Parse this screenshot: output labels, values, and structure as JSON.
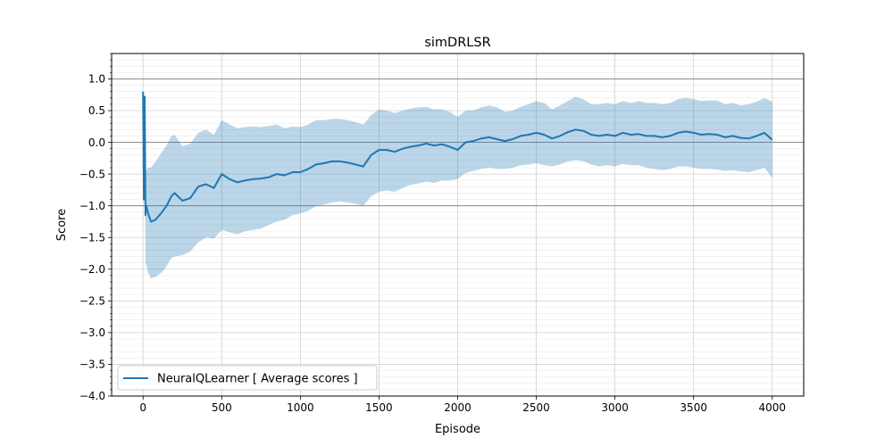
{
  "chart_data": {
    "type": "line",
    "title": "simDRLSR",
    "xlabel": "Episode",
    "ylabel": "Score",
    "xlim": [
      -200,
      4200
    ],
    "ylim": [
      -4.0,
      1.4
    ],
    "xticks": [
      0,
      500,
      1000,
      1500,
      2000,
      2500,
      3000,
      3500,
      4000
    ],
    "yticks": [
      -4.0,
      -3.5,
      -3.0,
      -2.5,
      -2.0,
      -1.5,
      -1.0,
      -0.5,
      0.0,
      0.5,
      1.0
    ],
    "ytick_labels": [
      "−4.0",
      "−3.5",
      "−3.0",
      "−2.5",
      "−2.0",
      "−1.5",
      "−1.0",
      "−0.5",
      "0.0",
      "0.5",
      "1.0"
    ],
    "reference_lines_y": [
      1.0,
      0.0,
      -1.0
    ],
    "grid": true,
    "minor_grid": true,
    "legend": {
      "position": "lower-left",
      "entries": [
        "NeuralQLearner [ Average scores ]"
      ]
    },
    "colors": {
      "line": "#1f77b4",
      "band": "#1f77b4",
      "reference": "#808080"
    },
    "series": [
      {
        "name": "NeuralQLearner [ Average scores ]",
        "x": [
          0,
          5,
          10,
          15,
          20,
          30,
          50,
          80,
          120,
          150,
          180,
          200,
          250,
          300,
          350,
          400,
          450,
          500,
          550,
          600,
          650,
          700,
          750,
          800,
          850,
          900,
          950,
          1000,
          1050,
          1100,
          1150,
          1200,
          1250,
          1300,
          1350,
          1400,
          1450,
          1500,
          1550,
          1600,
          1650,
          1700,
          1750,
          1800,
          1850,
          1900,
          1950,
          2000,
          2050,
          2100,
          2150,
          2200,
          2250,
          2300,
          2350,
          2400,
          2450,
          2500,
          2550,
          2600,
          2650,
          2700,
          2750,
          2800,
          2850,
          2900,
          2950,
          3000,
          3050,
          3100,
          3150,
          3200,
          3250,
          3300,
          3350,
          3400,
          3450,
          3500,
          3550,
          3600,
          3650,
          3700,
          3750,
          3800,
          3850,
          3900,
          3950,
          4000
        ],
        "y": [
          0.8,
          -0.9,
          0.72,
          -1.15,
          -1.0,
          -1.1,
          -1.25,
          -1.22,
          -1.1,
          -1.0,
          -0.85,
          -0.8,
          -0.92,
          -0.88,
          -0.7,
          -0.66,
          -0.72,
          -0.5,
          -0.58,
          -0.63,
          -0.6,
          -0.58,
          -0.57,
          -0.55,
          -0.5,
          -0.52,
          -0.47,
          -0.47,
          -0.42,
          -0.35,
          -0.33,
          -0.3,
          -0.3,
          -0.32,
          -0.35,
          -0.38,
          -0.2,
          -0.12,
          -0.12,
          -0.15,
          -0.1,
          -0.07,
          -0.05,
          -0.02,
          -0.05,
          -0.03,
          -0.07,
          -0.12,
          0.0,
          0.02,
          0.06,
          0.08,
          0.05,
          0.02,
          0.05,
          0.1,
          0.12,
          0.15,
          0.12,
          0.06,
          0.1,
          0.16,
          0.2,
          0.18,
          0.12,
          0.1,
          0.12,
          0.1,
          0.15,
          0.12,
          0.13,
          0.1,
          0.1,
          0.08,
          0.1,
          0.15,
          0.17,
          0.15,
          0.12,
          0.13,
          0.12,
          0.08,
          0.1,
          0.07,
          0.06,
          0.1,
          0.15,
          0.04
        ],
        "lower": [
          0.8,
          -0.9,
          0.72,
          -2.0,
          -1.9,
          -2.05,
          -2.15,
          -2.12,
          -2.05,
          -1.95,
          -1.82,
          -1.8,
          -1.78,
          -1.72,
          -1.58,
          -1.5,
          -1.52,
          -1.38,
          -1.42,
          -1.45,
          -1.4,
          -1.38,
          -1.36,
          -1.3,
          -1.25,
          -1.22,
          -1.15,
          -1.12,
          -1.08,
          -1.0,
          -0.98,
          -0.95,
          -0.93,
          -0.95,
          -0.97,
          -1.0,
          -0.85,
          -0.78,
          -0.76,
          -0.78,
          -0.72,
          -0.67,
          -0.65,
          -0.62,
          -0.64,
          -0.6,
          -0.6,
          -0.58,
          -0.48,
          -0.45,
          -0.42,
          -0.4,
          -0.42,
          -0.42,
          -0.4,
          -0.36,
          -0.35,
          -0.33,
          -0.36,
          -0.38,
          -0.35,
          -0.3,
          -0.28,
          -0.3,
          -0.35,
          -0.38,
          -0.36,
          -0.38,
          -0.34,
          -0.36,
          -0.36,
          -0.4,
          -0.42,
          -0.44,
          -0.42,
          -0.38,
          -0.38,
          -0.4,
          -0.42,
          -0.42,
          -0.43,
          -0.45,
          -0.44,
          -0.46,
          -0.47,
          -0.44,
          -0.4,
          -0.56
        ],
        "upper": [
          0.8,
          -0.9,
          0.72,
          -0.55,
          -0.45,
          -0.4,
          -0.4,
          -0.3,
          -0.15,
          -0.05,
          0.1,
          0.12,
          -0.06,
          -0.02,
          0.15,
          0.2,
          0.12,
          0.35,
          0.28,
          0.22,
          0.24,
          0.25,
          0.24,
          0.26,
          0.28,
          0.22,
          0.25,
          0.24,
          0.28,
          0.35,
          0.35,
          0.37,
          0.37,
          0.35,
          0.32,
          0.28,
          0.43,
          0.52,
          0.5,
          0.46,
          0.5,
          0.53,
          0.55,
          0.56,
          0.52,
          0.52,
          0.48,
          0.4,
          0.5,
          0.5,
          0.55,
          0.58,
          0.55,
          0.48,
          0.5,
          0.56,
          0.6,
          0.65,
          0.62,
          0.52,
          0.58,
          0.65,
          0.72,
          0.68,
          0.6,
          0.6,
          0.62,
          0.6,
          0.65,
          0.62,
          0.65,
          0.62,
          0.62,
          0.6,
          0.62,
          0.68,
          0.7,
          0.68,
          0.65,
          0.66,
          0.66,
          0.6,
          0.62,
          0.58,
          0.6,
          0.64,
          0.7,
          0.64
        ]
      }
    ]
  }
}
